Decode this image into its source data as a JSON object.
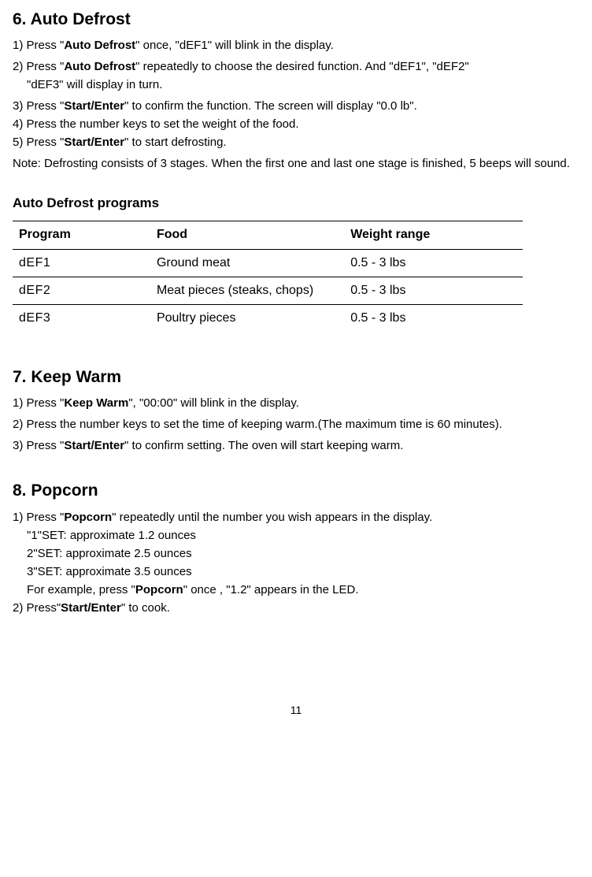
{
  "section6": {
    "title": "6. Auto Defrost",
    "step1_a": "1) Press \"",
    "step1_b": "Auto Defrost",
    "step1_c": "\" once, \"dEF1\" will blink in the display.",
    "step2_a": "2) Press \"",
    "step2_b": "Auto Defrost",
    "step2_c": "\" repeatedly to choose the desired function. And \"dEF1\", \"dEF2\"",
    "step2_d": "\"dEF3\" will display in turn.",
    "step3_a": "3) Press \"",
    "step3_b": "Start/Enter",
    "step3_c": "\" to confirm the function. The screen will display \"0.0 lb\".",
    "step4": "4) Press the number keys to set the weight of the food.",
    "step5_a": "5) Press \"",
    "step5_b": "Start/Enter",
    "step5_c": "\" to start defrosting.",
    "note": "Note: Defrosting consists of 3 stages. When the first one and last one stage is finished, 5 beeps will sound.",
    "table_title": "Auto Defrost programs",
    "table": {
      "headers": {
        "program": "Program",
        "food": "Food",
        "weight": "Weight range"
      },
      "rows": [
        {
          "program": "dEF1",
          "food": "Ground meat",
          "weight": "0.5 - 3 lbs"
        },
        {
          "program": "dEF2",
          "food": "Meat pieces (steaks, chops)",
          "weight": "0.5 - 3 lbs"
        },
        {
          "program": "dEF3",
          "food": "Poultry pieces",
          "weight": "0.5 - 3 lbs"
        }
      ]
    }
  },
  "section7": {
    "title": "7. Keep Warm",
    "step1_a": "1) Press \"",
    "step1_b": "Keep Warm",
    "step1_c": "\",  \"00:00\" will blink in the display.",
    "step2": "2) Press the number keys to set the time of keeping warm.(The maximum time is 60 minutes).",
    "step3_a": "3) Press \"",
    "step3_b": "Start/Enter",
    "step3_c": "\" to confirm setting. The oven will start  keeping warm."
  },
  "section8": {
    "title": "8. Popcorn",
    "step1_a": "1) Press \"",
    "step1_b": "Popcorn",
    "step1_c": "\" repeatedly until the number you wish appears in the display.",
    "line_a": "\"1\"SET: approximate 1.2 ounces",
    "line_b": "2\"SET: approximate 2.5 ounces",
    "line_c": "3\"SET: approximate 3.5 ounces",
    "line_d_a": "For example, press \"",
    "line_d_b": "Popcorn",
    "line_d_c": "\" once , \"1.2\" appears in the LED.",
    "step2_a": "2) Press\"",
    "step2_b": "Start/Enter",
    "step2_c": "\" to cook."
  },
  "page_number": "11"
}
